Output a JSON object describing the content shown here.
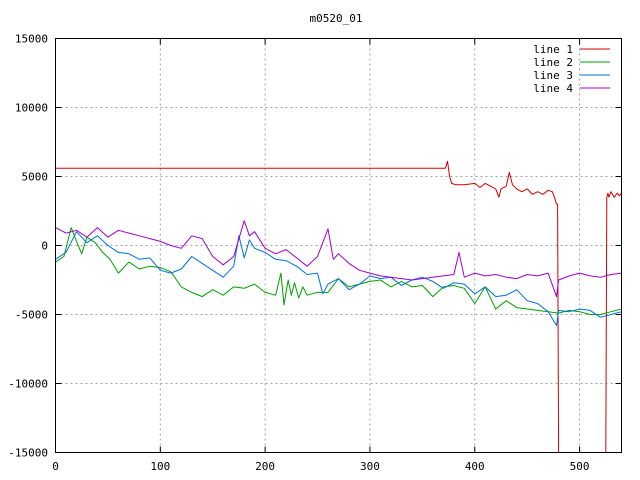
{
  "chart_data": {
    "type": "line",
    "title": "m0520_01",
    "xlim": [
      0,
      540
    ],
    "ylim": [
      -15000,
      15000
    ],
    "xticks": [
      0,
      100,
      200,
      300,
      400,
      500
    ],
    "yticks": [
      15000,
      10000,
      5000,
      0,
      -5000,
      -10000,
      -15000
    ],
    "grid": true,
    "legend_position": "top-right",
    "series": [
      {
        "name": "line 1",
        "color": "#d00000",
        "x": [
          0,
          100,
          200,
          300,
          372,
          374,
          376,
          378,
          382,
          390,
          400,
          405,
          410,
          415,
          420,
          423,
          425,
          430,
          433,
          436,
          440,
          445,
          450,
          455,
          460,
          465,
          470,
          474,
          476,
          478,
          479,
          480,
          481,
          482,
          484,
          500,
          520,
          524,
          525,
          526,
          527,
          528,
          530,
          533,
          536,
          538,
          540
        ],
        "y": [
          5600,
          5600,
          5600,
          5600,
          5600,
          6100,
          5000,
          4500,
          4400,
          4400,
          4500,
          4200,
          4500,
          4300,
          4100,
          3500,
          4100,
          4300,
          5300,
          4400,
          4100,
          3900,
          4100,
          3700,
          3900,
          3700,
          4000,
          3900,
          3500,
          3000,
          3000,
          -15000,
          -15000,
          -15000,
          -15000,
          -15000,
          -15000,
          -15000,
          -15000,
          3500,
          3800,
          3500,
          3900,
          3500,
          3800,
          3600,
          3800
        ]
      },
      {
        "name": "line 2",
        "color": "#00a000",
        "x": [
          0,
          8,
          15,
          20,
          25,
          30,
          38,
          45,
          52,
          60,
          70,
          80,
          90,
          100,
          110,
          120,
          130,
          140,
          150,
          160,
          170,
          180,
          190,
          200,
          210,
          215,
          218,
          222,
          225,
          228,
          232,
          236,
          240,
          250,
          260,
          270,
          280,
          290,
          300,
          310,
          320,
          330,
          340,
          350,
          360,
          370,
          380,
          390,
          400,
          410,
          420,
          430,
          440,
          450,
          460,
          470,
          480,
          490,
          500,
          510,
          520,
          530,
          540
        ],
        "y": [
          -1200,
          -800,
          1300,
          300,
          -600,
          600,
          200,
          -500,
          -1000,
          -2000,
          -1200,
          -1700,
          -1500,
          -1600,
          -1900,
          -3000,
          -3400,
          -3700,
          -3200,
          -3600,
          -3000,
          -3100,
          -2800,
          -3400,
          -3600,
          -2000,
          -4300,
          -2500,
          -3600,
          -2700,
          -3800,
          -3000,
          -3600,
          -3400,
          -3400,
          -2400,
          -3000,
          -2800,
          -2600,
          -2500,
          -3000,
          -2600,
          -3000,
          -2900,
          -3700,
          -3000,
          -2900,
          -3100,
          -4200,
          -3000,
          -4600,
          -4000,
          -4500,
          -4600,
          -4700,
          -4800,
          -4900,
          -4700,
          -4800,
          -5000,
          -5000,
          -4800,
          -4600
        ]
      },
      {
        "name": "line 3",
        "color": "#0070e0",
        "x": [
          0,
          10,
          20,
          30,
          40,
          50,
          60,
          70,
          80,
          90,
          100,
          110,
          120,
          130,
          140,
          150,
          160,
          170,
          175,
          180,
          185,
          190,
          200,
          210,
          220,
          230,
          240,
          250,
          255,
          260,
          270,
          280,
          290,
          300,
          310,
          320,
          330,
          340,
          350,
          360,
          370,
          380,
          390,
          400,
          410,
          420,
          430,
          440,
          450,
          460,
          470,
          478,
          480,
          490,
          500,
          510,
          520,
          530,
          540
        ],
        "y": [
          -1000,
          -500,
          1000,
          200,
          700,
          0,
          -500,
          -600,
          -1000,
          -900,
          -1800,
          -2000,
          -1700,
          -800,
          -1300,
          -1800,
          -2300,
          -1500,
          700,
          -900,
          400,
          -200,
          -500,
          -1000,
          -1100,
          -1500,
          -2100,
          -2000,
          -3500,
          -2800,
          -2400,
          -3200,
          -2800,
          -2200,
          -2400,
          -2300,
          -2900,
          -2500,
          -2300,
          -2600,
          -3100,
          -2700,
          -2800,
          -3500,
          -3000,
          -3700,
          -3600,
          -3200,
          -4000,
          -4200,
          -4800,
          -5800,
          -4700,
          -4800,
          -4600,
          -4700,
          -5200,
          -5000,
          -4800
        ]
      },
      {
        "name": "line 4",
        "color": "#a000d0",
        "x": [
          0,
          10,
          20,
          30,
          40,
          50,
          60,
          70,
          80,
          90,
          100,
          110,
          120,
          130,
          140,
          150,
          160,
          170,
          180,
          185,
          190,
          200,
          210,
          220,
          230,
          240,
          250,
          260,
          265,
          270,
          280,
          290,
          300,
          310,
          320,
          330,
          340,
          350,
          360,
          370,
          380,
          385,
          390,
          400,
          410,
          420,
          430,
          440,
          450,
          460,
          470,
          478,
          480,
          490,
          500,
          510,
          520,
          530,
          540
        ],
        "y": [
          1300,
          900,
          1100,
          600,
          1300,
          600,
          1100,
          900,
          700,
          500,
          300,
          0,
          -200,
          700,
          500,
          -800,
          -1400,
          -800,
          1800,
          700,
          1000,
          -200,
          -600,
          -300,
          -900,
          -1500,
          -800,
          1200,
          -1000,
          -600,
          -1300,
          -1800,
          -2000,
          -2200,
          -2300,
          -2400,
          -2500,
          -2400,
          -2300,
          -2200,
          -2100,
          -500,
          -2300,
          -2000,
          -2200,
          -2100,
          -2300,
          -2400,
          -2100,
          -2200,
          -2000,
          -3700,
          -2500,
          -2200,
          -2000,
          -2200,
          -2300,
          -2100,
          -2000
        ]
      }
    ]
  }
}
